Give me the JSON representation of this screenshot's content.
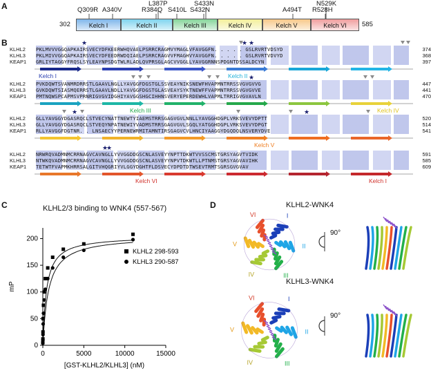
{
  "panel_a": {
    "letter": "A",
    "start": "302",
    "end": "585",
    "domains": [
      {
        "label": "Kelch I",
        "color": "#7fb6ea"
      },
      {
        "label": "Kelch II",
        "color": "#7fd4ee"
      },
      {
        "label": "Kelch III",
        "color": "#86d59a"
      },
      {
        "label": "Kelch IV",
        "color": "#f3ef9a"
      },
      {
        "label": "Kelch V",
        "color": "#f7c98a"
      },
      {
        "label": "Kelch VI",
        "color": "#f09e9e"
      }
    ],
    "mutations": [
      "Q309R",
      "A340V",
      "L387P",
      "R384Q",
      "S410L",
      "S433N",
      "S432N",
      "A494T",
      "N529K",
      "R528H"
    ]
  },
  "panel_b": {
    "letter": "B",
    "blocks": [
      {
        "rows": [
          {
            "name": "KLHL2",
            "seq": "PKLMVVVGGQAPKAIRSVECYDFKEERWHQVAELPSRRCRAGMVYMAGLVFAVGGFN. . . . . GSLRVRTVDSYD",
            "end": "374"
          },
          {
            "name": "KLHL3",
            "seq": "PKLMIVVGGQAPKAIRSVECYDFEEDRWDQIAELPSRRCRAGVVFMAGHVYAVGGFN. . . . . GSLRVRTVDVYD",
            "end": "368"
          },
          {
            "name": "KEAP1",
            "seq": "GRLIYTAGGYFRQSLSYLEAYNPSDGTWLRLADLQVPRSGLAGCVVGGLLYAVGGRNNSPDGNTDSSALDCYN",
            "end": "397"
          }
        ],
        "labels": [
          "Kelch I",
          "Kelch II"
        ]
      },
      {
        "rows": [
          {
            "name": "KLHL2",
            "seq": "PVKDQWTSVANMRDRRSTLGAAVLNGLLYAVGGFDGSTGLSSVEAYNIKSNEWFHVAPMNTRRSSVGVGVVG",
            "end": "447"
          },
          {
            "name": "KLHL3",
            "seq": "GVKDQWTSIASMQERRSTLGAAVLNDLLYAVGGFDGSTGLASVEAYSYKTNEWFFVAPMNTRRSSVGVGVVE",
            "end": "441"
          },
          {
            "name": "KEAP1",
            "seq": "PMTNQWSPCAPMSVPRNRIGVGVIDGHIYAVGGSHGCIHHNSVERYEPERDEWHLVAPMLTRRIGVGVAVLN",
            "end": "470"
          }
        ],
        "labels": [
          "Kelch III",
          "Kelch IV"
        ]
      },
      {
        "rows": [
          {
            "name": "KLHL2",
            "seq": "GLLYAVGGYDGASRQCLSTVECYNATTNEWTYIAEMSTRRSGAGVGVLNNLLYAVGGHDGPLVRKSVEVYDPTT",
            "end": "520"
          },
          {
            "name": "KLHL3",
            "seq": "GLLYAVGGYDGASRQCLSTVEQYNPATNEWIYVADMSTRRSGAGVGVLSGQLYATGGHDGPLVRKSVEVYDPGT",
            "end": "514"
          },
          {
            "name": "KEAP1",
            "seq": "RLLYAVGGFDGTNR. . LNSAECYYPERNEWRMITAMNTIRSGAGVCVLHNCIYAAGGYDGQDQLNSVERYDVE",
            "end": "541"
          }
        ],
        "labels": [
          "Kelch V"
        ]
      },
      {
        "rows": [
          {
            "name": "KLHL2",
            "seq": "NRWRQVADMNMCRRNAGVCAVNGLLYVVGGDDGSCNLASVEYYNPTTDKWTVVSSCMSTGRSYAGVTVIDK",
            "end": "591"
          },
          {
            "name": "KLHL3",
            "seq": "NTWKQVADMNMCRRNAGVCAVNGLLYVVGGDDGSCNLASVEYYNPVTDKWTLLPTNMSTGRSYAGVAVIHK",
            "end": "585"
          },
          {
            "name": "KEAP1",
            "seq": "TETWTFVAPMKHRRSALGITVHQGRIYVLGGYDGHTFLDSVECYDPDTDTWSEVTRMTSGRSGVGVAV",
            "end": "609"
          }
        ],
        "labels": [
          "Kelch VI",
          "Kelch I"
        ]
      }
    ]
  },
  "panel_c": {
    "letter": "C",
    "title": "KLHL2/3 binding to WNK4 (557-567)",
    "xlabel": "[GST-KLHL2/KLHL3] (nM)",
    "ylabel": "mP",
    "legend": [
      "KLHL2 298-593",
      "KLHL3 290-587"
    ]
  },
  "panel_d": {
    "letter": "D",
    "top_title": "KLHL2-WNK4",
    "bottom_title": "KLHL3-WNK4",
    "rotation": "90°",
    "blade_labels": [
      "I",
      "II",
      "III",
      "IV",
      "V",
      "VI"
    ]
  },
  "chart_data": {
    "type": "scatter",
    "title": "KLHL2/3 binding to WNK4 (557-567)",
    "xlabel": "[GST-KLHL2/KLHL3] (nM)",
    "ylabel": "mP",
    "xlim": [
      0,
      15000
    ],
    "ylim": [
      0,
      220
    ],
    "xticks": [
      0,
      5000,
      10000,
      15000
    ],
    "yticks": [
      0,
      50,
      100,
      150,
      200
    ],
    "legend_position": "top-right",
    "series": [
      {
        "name": "KLHL2 298-593",
        "marker": "square",
        "x": [
          0,
          10,
          20,
          40,
          80,
          160,
          300,
          600,
          1200,
          2500,
          5000,
          11000
        ],
        "y": [
          5,
          12,
          25,
          50,
          75,
          100,
          125,
          145,
          165,
          180,
          190,
          208
        ]
      },
      {
        "name": "KLHL3 290-587",
        "marker": "circle",
        "x": [
          0,
          10,
          20,
          40,
          80,
          160,
          300,
          600,
          1200,
          2500,
          5000,
          11000
        ],
        "y": [
          4,
          10,
          20,
          40,
          60,
          85,
          105,
          125,
          145,
          165,
          178,
          198
        ]
      }
    ]
  }
}
